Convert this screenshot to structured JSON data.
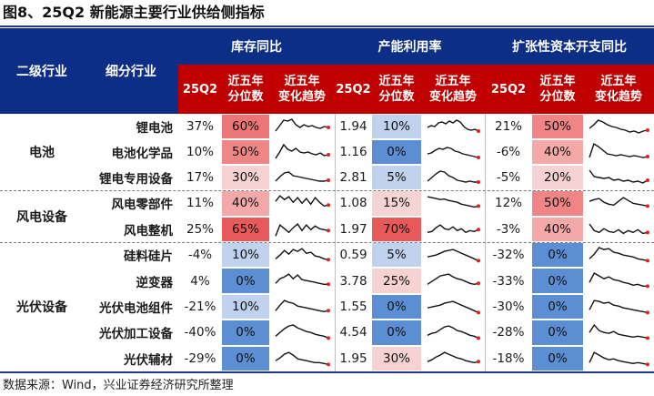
{
  "title": "图8、25Q2 新能源主要行业供给侧指标",
  "source": "数据来源：Wind，兴业证券经济研究所整理",
  "headers": {
    "level2": "二级行业",
    "subind": "细分行业",
    "group_inventory": "库存同比",
    "group_capacity": "产能利用率",
    "group_capex": "扩张性资本开支同比",
    "col_q": "25Q2",
    "col_pct_1": "近五年",
    "col_pct_2": "分位数",
    "col_trend_1": "近五年",
    "col_trend_2": "变化趋势"
  },
  "colors": {
    "header_navy": "#0c2e86",
    "header_red": "#c00000",
    "rule": "#1f3a93",
    "spark_line": "#111111",
    "spark_end": "#e02020"
  },
  "sections": [
    {
      "name": "电池",
      "rows": [
        0,
        1,
        2
      ]
    },
    {
      "name": "风电设备",
      "rows": [
        3,
        4
      ]
    },
    {
      "name": "光伏设备",
      "rows": [
        5,
        6,
        7,
        8,
        9
      ]
    }
  ],
  "rows": [
    {
      "name": "锂电池",
      "inv": {
        "q": "37%",
        "pct": "60%",
        "pct_value": 0.6,
        "trend": [
          0.25,
          0.55,
          0.85,
          0.8,
          0.9,
          0.6,
          0.45,
          0.6,
          0.5,
          0.55,
          0.45,
          0.4,
          0.5,
          0.45
        ]
      },
      "cap": {
        "q": "1.94",
        "pct": "10%",
        "pct_value": 0.1,
        "trend": [
          0.45,
          0.55,
          0.5,
          0.7,
          0.75,
          0.65,
          0.8,
          0.7,
          0.85,
          0.75,
          0.5,
          0.35,
          0.3,
          0.35,
          0.25
        ]
      },
      "capex": {
        "q": "21%",
        "pct": "50%",
        "pct_value": 0.5,
        "trend": [
          0.4,
          0.6,
          0.85,
          0.75,
          0.6,
          0.5,
          0.45,
          0.35,
          0.3,
          0.2,
          0.25,
          0.15,
          0.25,
          0.3
        ]
      }
    },
    {
      "name": "电池化学品",
      "inv": {
        "q": "10%",
        "pct": "50%",
        "pct_value": 0.5,
        "trend": [
          0.15,
          0.5,
          0.9,
          0.65,
          0.55,
          0.7,
          0.5,
          0.45,
          0.5,
          0.4,
          0.35,
          0.45,
          0.3,
          0.35
        ]
      },
      "cap": {
        "q": "1.16",
        "pct": "0%",
        "pct_value": 0.0,
        "trend": [
          0.4,
          0.45,
          0.6,
          0.7,
          0.65,
          0.75,
          0.7,
          0.55,
          0.5,
          0.4,
          0.35,
          0.3,
          0.25,
          0.2
        ]
      },
      "capex": {
        "q": "-6%",
        "pct": "40%",
        "pct_value": 0.4,
        "trend": [
          0.2,
          0.95,
          0.8,
          0.6,
          0.4,
          0.35,
          0.3,
          0.35,
          0.3,
          0.25,
          0.3,
          0.25,
          0.2,
          0.25
        ]
      }
    },
    {
      "name": "锂电专用设备",
      "inv": {
        "q": "17%",
        "pct": "30%",
        "pct_value": 0.3,
        "trend": [
          0.3,
          0.55,
          0.75,
          0.8,
          0.6,
          0.55,
          0.5,
          0.45,
          0.4,
          0.35,
          0.3,
          0.3,
          0.35
        ]
      },
      "cap": {
        "q": "2.81",
        "pct": "5%",
        "pct_value": 0.05,
        "trend": [
          0.3,
          0.5,
          0.7,
          0.85,
          0.8,
          0.6,
          0.5,
          0.35,
          0.3,
          0.25,
          0.3,
          0.25,
          0.25
        ]
      },
      "capex": {
        "q": "-5%",
        "pct": "20%",
        "pct_value": 0.2,
        "trend": [
          0.9,
          0.55,
          0.5,
          0.45,
          0.5,
          0.35,
          0.4,
          0.3,
          0.35,
          0.25,
          0.3,
          0.2,
          0.35
        ]
      }
    },
    {
      "name": "风电零部件",
      "inv": {
        "q": "11%",
        "pct": "40%",
        "pct_value": 0.4,
        "trend": [
          0.6,
          0.9,
          0.7,
          0.85,
          0.55,
          0.8,
          0.5,
          0.75,
          0.45,
          0.8,
          0.55,
          0.35,
          0.4
        ]
      },
      "cap": {
        "q": "1.08",
        "pct": "15%",
        "pct_value": 0.15,
        "trend": [
          0.85,
          0.8,
          0.75,
          0.7,
          0.72,
          0.65,
          0.6,
          0.55,
          0.45,
          0.4,
          0.35,
          0.3,
          0.35
        ]
      },
      "capex": {
        "q": "12%",
        "pct": "50%",
        "pct_value": 0.5,
        "trend": [
          0.6,
          0.7,
          0.75,
          0.55,
          0.45,
          0.4,
          0.6,
          0.8,
          0.65,
          0.5,
          0.45,
          0.4,
          0.35
        ]
      }
    },
    {
      "name": "风电整机",
      "inv": {
        "q": "25%",
        "pct": "65%",
        "pct_value": 0.65,
        "trend": [
          0.15,
          0.75,
          0.55,
          0.35,
          0.6,
          0.8,
          0.45,
          0.75,
          0.5,
          0.7,
          0.55,
          0.5,
          0.45
        ]
      },
      "cap": {
        "q": "1.97",
        "pct": "70%",
        "pct_value": 0.7,
        "trend": [
          0.35,
          0.4,
          0.6,
          0.75,
          0.55,
          0.5,
          0.65,
          0.45,
          0.55,
          0.35,
          0.45,
          0.4,
          0.5
        ]
      },
      "capex": {
        "q": "-3%",
        "pct": "40%",
        "pct_value": 0.4,
        "trend": [
          0.8,
          0.45,
          0.35,
          0.55,
          0.4,
          0.35,
          0.5,
          0.3,
          0.45,
          0.35,
          0.5,
          0.3,
          0.35
        ]
      }
    },
    {
      "name": "硅料硅片",
      "inv": {
        "q": "-4%",
        "pct": "10%",
        "pct_value": 0.1,
        "trend": [
          0.3,
          0.5,
          0.75,
          0.55,
          0.8,
          0.7,
          0.85,
          0.6,
          0.65,
          0.45,
          0.4,
          0.3,
          0.25
        ]
      },
      "cap": {
        "q": "0.59",
        "pct": "5%",
        "pct_value": 0.05,
        "trend": [
          0.4,
          0.45,
          0.5,
          0.6,
          0.7,
          0.75,
          0.8,
          0.7,
          0.6,
          0.5,
          0.4,
          0.3,
          0.2
        ]
      },
      "capex": {
        "q": "-32%",
        "pct": "0%",
        "pct_value": 0.0,
        "trend": [
          0.3,
          0.55,
          0.9,
          0.8,
          0.85,
          0.65,
          0.6,
          0.5,
          0.45,
          0.4,
          0.3,
          0.25,
          0.2
        ]
      }
    },
    {
      "name": "逆变器",
      "inv": {
        "q": "4%",
        "pct": "0%",
        "pct_value": 0.0,
        "trend": [
          0.35,
          0.6,
          0.7,
          0.85,
          0.6,
          0.8,
          0.55,
          0.5,
          0.45,
          0.4,
          0.35,
          0.3,
          0.3
        ]
      },
      "cap": {
        "q": "3.78",
        "pct": "25%",
        "pct_value": 0.25,
        "trend": [
          0.3,
          0.45,
          0.6,
          0.75,
          0.8,
          0.85,
          0.7,
          0.6,
          0.55,
          0.45,
          0.35,
          0.3,
          0.35
        ]
      },
      "capex": {
        "q": "-33%",
        "pct": "0%",
        "pct_value": 0.0,
        "trend": [
          0.4,
          0.9,
          0.75,
          0.6,
          0.7,
          0.55,
          0.5,
          0.4,
          0.35,
          0.25,
          0.3,
          0.2,
          0.2
        ]
      }
    },
    {
      "name": "光伏电池组件",
      "inv": {
        "q": "-21%",
        "pct": "10%",
        "pct_value": 0.1,
        "trend": [
          0.3,
          0.6,
          0.85,
          0.75,
          0.7,
          0.55,
          0.5,
          0.45,
          0.4,
          0.35,
          0.3,
          0.25,
          0.3
        ]
      },
      "cap": {
        "q": "1.55",
        "pct": "0%",
        "pct_value": 0.0,
        "trend": [
          0.45,
          0.5,
          0.55,
          0.6,
          0.7,
          0.75,
          0.8,
          0.7,
          0.6,
          0.5,
          0.4,
          0.3,
          0.2
        ]
      },
      "capex": {
        "q": "-30%",
        "pct": "0%",
        "pct_value": 0.0,
        "trend": [
          0.35,
          0.85,
          0.8,
          0.7,
          0.75,
          0.6,
          0.55,
          0.45,
          0.4,
          0.35,
          0.3,
          0.25,
          0.2
        ]
      }
    },
    {
      "name": "光伏加工设备",
      "inv": {
        "q": "-40%",
        "pct": "0%",
        "pct_value": 0.0,
        "trend": [
          0.3,
          0.5,
          0.7,
          0.85,
          0.9,
          0.75,
          0.65,
          0.55,
          0.5,
          0.4,
          0.35,
          0.3,
          0.2
        ]
      },
      "cap": {
        "q": "4.54",
        "pct": "0%",
        "pct_value": 0.0,
        "trend": [
          0.35,
          0.45,
          0.5,
          0.65,
          0.8,
          0.85,
          0.75,
          0.6,
          0.55,
          0.45,
          0.35,
          0.3,
          0.2
        ]
      },
      "capex": {
        "q": "-28%",
        "pct": "0%",
        "pct_value": 0.0,
        "trend": [
          0.5,
          0.9,
          0.6,
          0.5,
          0.45,
          0.55,
          0.4,
          0.35,
          0.3,
          0.25,
          0.3,
          0.25,
          0.2
        ]
      }
    },
    {
      "name": "光伏辅材",
      "inv": {
        "q": "-29%",
        "pct": "0%",
        "pct_value": 0.0,
        "trend": [
          0.4,
          0.55,
          0.75,
          0.85,
          0.7,
          0.5,
          0.45,
          0.4,
          0.35,
          0.3,
          0.3,
          0.25,
          0.2
        ]
      },
      "cap": {
        "q": "1.95",
        "pct": "30%",
        "pct_value": 0.3,
        "trend": [
          0.35,
          0.45,
          0.6,
          0.7,
          0.85,
          0.75,
          0.65,
          0.55,
          0.5,
          0.4,
          0.35,
          0.3,
          0.35
        ]
      },
      "capex": {
        "q": "-18%",
        "pct": "0%",
        "pct_value": 0.0,
        "trend": [
          0.3,
          0.85,
          0.7,
          0.55,
          0.45,
          0.5,
          0.4,
          0.35,
          0.3,
          0.25,
          0.3,
          0.25,
          0.2
        ]
      }
    }
  ]
}
